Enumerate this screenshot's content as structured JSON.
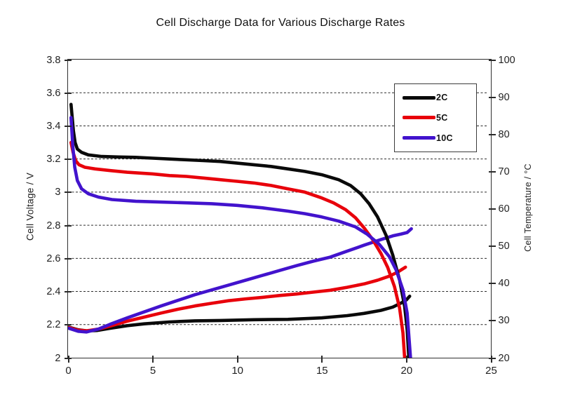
{
  "chart_data": {
    "type": "line",
    "title": "Cell Discharge Data for Various Discharge Rates",
    "grid": true,
    "legend_position": "upper right",
    "x_axis": {
      "label": "",
      "min": 0,
      "max": 25,
      "ticks": [
        "0",
        "5",
        "10",
        "15",
        "20",
        "25"
      ]
    },
    "y_left": {
      "label": "Cell Voltage / V",
      "min": 2,
      "max": 3.8,
      "ticks": [
        "3.8",
        "3.6",
        "3.4",
        "3.2",
        "3",
        "2.8",
        "2.6",
        "2.4",
        "2.2",
        "2"
      ]
    },
    "y_right": {
      "label": "Cell Temperature / °C",
      "min": 20,
      "max": 100,
      "ticks": [
        "100",
        "90",
        "80",
        "70",
        "60",
        "50",
        "40",
        "30",
        "20"
      ]
    },
    "gridlines": [
      3.6,
      3.4,
      3.2,
      3.0,
      2.8,
      2.6,
      2.4,
      2.2
    ],
    "legend": [
      {
        "label": "2C",
        "color": "#0a0a0a"
      },
      {
        "label": "5C",
        "color": "#e8000b"
      },
      {
        "label": "10C",
        "color": "#4213cd"
      }
    ],
    "series": [
      {
        "name": "2C cell temperature",
        "axis": "right",
        "color": "#0a0a0a",
        "points": [
          [
            0.05,
            28.2
          ],
          [
            0.6,
            27.5
          ],
          [
            1.1,
            27.2
          ],
          [
            1.7,
            27.3
          ],
          [
            2.5,
            27.9
          ],
          [
            3.5,
            28.6
          ],
          [
            4.5,
            29.1
          ],
          [
            6,
            29.6
          ],
          [
            7.5,
            29.9
          ],
          [
            9,
            30.0
          ],
          [
            11,
            30.2
          ],
          [
            13,
            30.3
          ],
          [
            15,
            30.7
          ],
          [
            16.5,
            31.3
          ],
          [
            17.5,
            31.9
          ],
          [
            18.5,
            32.7
          ],
          [
            19.2,
            33.6
          ],
          [
            19.7,
            34.7
          ],
          [
            20.0,
            35.5
          ],
          [
            20.2,
            36.5
          ]
        ]
      },
      {
        "name": "5C cell temperature",
        "axis": "right",
        "color": "#e8000b",
        "points": [
          [
            0.05,
            28.1
          ],
          [
            0.6,
            27.4
          ],
          [
            1.1,
            27.2
          ],
          [
            1.8,
            27.7
          ],
          [
            2.5,
            28.5
          ],
          [
            3.5,
            29.8
          ],
          [
            4.5,
            30.9
          ],
          [
            5.5,
            32.0
          ],
          [
            6.5,
            33.0
          ],
          [
            7.5,
            33.9
          ],
          [
            8.5,
            34.6
          ],
          [
            9.5,
            35.3
          ],
          [
            10.5,
            35.8
          ],
          [
            11.5,
            36.2
          ],
          [
            12.5,
            36.7
          ],
          [
            13.5,
            37.1
          ],
          [
            14.5,
            37.6
          ],
          [
            15.5,
            38.1
          ],
          [
            16.5,
            38.9
          ],
          [
            17.5,
            39.8
          ],
          [
            18.3,
            40.8
          ],
          [
            19.0,
            41.9
          ],
          [
            19.5,
            43.0
          ],
          [
            19.95,
            44.3
          ]
        ]
      },
      {
        "name": "10C cell temperature",
        "axis": "right",
        "color": "#4213cd",
        "points": [
          [
            0.05,
            27.9
          ],
          [
            0.6,
            27.1
          ],
          [
            1.1,
            26.9
          ],
          [
            1.8,
            27.7
          ],
          [
            2.5,
            29.0
          ],
          [
            3.5,
            30.7
          ],
          [
            4.5,
            32.3
          ],
          [
            5.5,
            33.9
          ],
          [
            6.5,
            35.4
          ],
          [
            7.5,
            36.9
          ],
          [
            8.5,
            38.2
          ],
          [
            9.5,
            39.5
          ],
          [
            10.5,
            40.8
          ],
          [
            11.5,
            42.1
          ],
          [
            12.5,
            43.4
          ],
          [
            13.5,
            44.7
          ],
          [
            14.5,
            45.9
          ],
          [
            15.5,
            47.0
          ],
          [
            16.5,
            48.6
          ],
          [
            17.5,
            50.2
          ],
          [
            18.5,
            51.7
          ],
          [
            19.2,
            52.7
          ],
          [
            19.7,
            53.2
          ],
          [
            20.05,
            53.6
          ],
          [
            20.3,
            54.6
          ]
        ]
      },
      {
        "name": "2C cell voltage",
        "axis": "left",
        "color": "#0a0a0a",
        "points": [
          [
            0.18,
            3.53
          ],
          [
            0.25,
            3.45
          ],
          [
            0.32,
            3.37
          ],
          [
            0.42,
            3.3
          ],
          [
            0.55,
            3.26
          ],
          [
            0.8,
            3.24
          ],
          [
            1.2,
            3.225
          ],
          [
            2,
            3.215
          ],
          [
            3,
            3.212
          ],
          [
            4,
            3.21
          ],
          [
            5,
            3.205
          ],
          [
            6,
            3.2
          ],
          [
            7,
            3.195
          ],
          [
            8,
            3.19
          ],
          [
            9,
            3.185
          ],
          [
            10,
            3.175
          ],
          [
            11,
            3.165
          ],
          [
            12,
            3.155
          ],
          [
            13,
            3.14
          ],
          [
            14,
            3.125
          ],
          [
            15,
            3.105
          ],
          [
            16,
            3.075
          ],
          [
            16.7,
            3.04
          ],
          [
            17.3,
            2.99
          ],
          [
            17.8,
            2.93
          ],
          [
            18.3,
            2.85
          ],
          [
            18.8,
            2.74
          ],
          [
            19.2,
            2.62
          ],
          [
            19.6,
            2.47
          ],
          [
            19.9,
            2.31
          ],
          [
            20.05,
            2.17
          ],
          [
            20.15,
            2.0
          ]
        ]
      },
      {
        "name": "5C cell voltage",
        "axis": "left",
        "color": "#e8000b",
        "points": [
          [
            0.18,
            3.3
          ],
          [
            0.3,
            3.24
          ],
          [
            0.45,
            3.19
          ],
          [
            0.65,
            3.165
          ],
          [
            1,
            3.15
          ],
          [
            1.6,
            3.14
          ],
          [
            2.5,
            3.13
          ],
          [
            3.5,
            3.12
          ],
          [
            5,
            3.11
          ],
          [
            6,
            3.1
          ],
          [
            7,
            3.095
          ],
          [
            8,
            3.085
          ],
          [
            9,
            3.075
          ],
          [
            10,
            3.065
          ],
          [
            11,
            3.055
          ],
          [
            12,
            3.04
          ],
          [
            13,
            3.02
          ],
          [
            14,
            3.0
          ],
          [
            15,
            2.965
          ],
          [
            15.7,
            2.935
          ],
          [
            16.4,
            2.895
          ],
          [
            17,
            2.845
          ],
          [
            17.5,
            2.785
          ],
          [
            18,
            2.715
          ],
          [
            18.5,
            2.63
          ],
          [
            18.9,
            2.545
          ],
          [
            19.3,
            2.43
          ],
          [
            19.6,
            2.3
          ],
          [
            19.8,
            2.15
          ],
          [
            19.9,
            2.0
          ]
        ]
      },
      {
        "name": "10C cell voltage",
        "axis": "left",
        "color": "#4213cd",
        "points": [
          [
            0.18,
            3.45
          ],
          [
            0.28,
            3.28
          ],
          [
            0.4,
            3.15
          ],
          [
            0.55,
            3.07
          ],
          [
            0.8,
            3.02
          ],
          [
            1.2,
            2.99
          ],
          [
            1.8,
            2.97
          ],
          [
            2.6,
            2.955
          ],
          [
            4,
            2.945
          ],
          [
            5.5,
            2.94
          ],
          [
            7,
            2.935
          ],
          [
            8.5,
            2.93
          ],
          [
            10,
            2.92
          ],
          [
            11.5,
            2.905
          ],
          [
            13,
            2.885
          ],
          [
            14,
            2.87
          ],
          [
            15,
            2.85
          ],
          [
            16,
            2.825
          ],
          [
            17,
            2.79
          ],
          [
            17.7,
            2.745
          ],
          [
            18.4,
            2.685
          ],
          [
            19,
            2.61
          ],
          [
            19.4,
            2.53
          ],
          [
            19.8,
            2.41
          ],
          [
            20.05,
            2.27
          ],
          [
            20.25,
            2.0
          ]
        ]
      }
    ]
  }
}
